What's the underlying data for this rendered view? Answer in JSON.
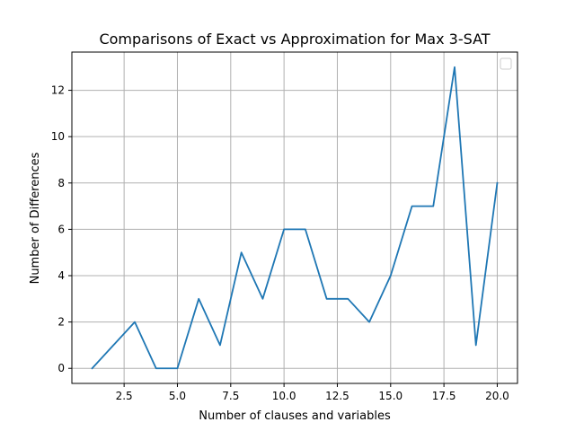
{
  "chart_data": {
    "type": "line",
    "title": "Comparisons of Exact vs Approximation for Max 3-SAT",
    "xlabel": "Number of clauses and variables",
    "ylabel": "Number of Differences",
    "xlim": [
      0.05,
      20.95
    ],
    "ylim": [
      -0.65,
      13.65
    ],
    "x_ticks": [
      2.5,
      5.0,
      7.5,
      10.0,
      12.5,
      15.0,
      17.5,
      20.0
    ],
    "x_tick_labels": [
      "2.5",
      "5.0",
      "7.5",
      "10.0",
      "12.5",
      "15.0",
      "17.5",
      "20.0"
    ],
    "y_ticks": [
      0,
      2,
      4,
      6,
      8,
      10,
      12
    ],
    "y_tick_labels": [
      "0",
      "2",
      "4",
      "6",
      "8",
      "10",
      "12"
    ],
    "grid": true,
    "legend": {
      "placement": "top-right",
      "entries": []
    },
    "series": [
      {
        "color": "#1f77b4",
        "x": [
          1,
          2,
          3,
          4,
          5,
          6,
          7,
          8,
          9,
          10,
          11,
          12,
          13,
          14,
          15,
          16,
          17,
          18,
          19,
          20
        ],
        "values": [
          0,
          1,
          2,
          0,
          0,
          3,
          1,
          5,
          3,
          6,
          6,
          3,
          3,
          2,
          4,
          7,
          7,
          13,
          1,
          8
        ]
      }
    ]
  }
}
